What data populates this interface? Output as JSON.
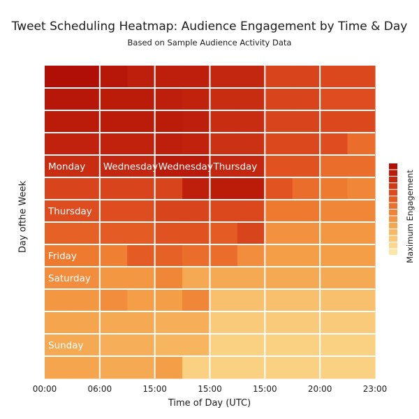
{
  "chart_data": {
    "type": "heatmap",
    "title": "Tweet Scheduling Heatmap: Audience Engagement by Time & Day",
    "subtitle": "Based on Sample Audience Activity Data",
    "xlabel": "Time of Day (UTC)",
    "ylabel": "Day ofthe Week",
    "x_tick_labels": [
      "00:00",
      "06:00",
      "15:00",
      "15:00",
      "15:00",
      "20:00",
      "23:00"
    ],
    "colorbar_label": "Maximum Engagement",
    "colorbar_range": [
      0,
      1
    ],
    "colorscale": [
      "#fbe6a6",
      "#f9c774",
      "#f5a24b",
      "#ee7a30",
      "#e05020",
      "#c62a10",
      "#b00f05"
    ],
    "grid": true,
    "legend": "right",
    "columns": 6,
    "rows": 14,
    "cell_text_labels": [
      {
        "row": 4,
        "col": 0,
        "text": "Monday"
      },
      {
        "row": 4,
        "col": 1,
        "text": "Wednesday"
      },
      {
        "row": 4,
        "col": 2,
        "text": "Wednesday"
      },
      {
        "row": 4,
        "col": 3,
        "text": "Thursday"
      },
      {
        "row": 6,
        "col": 0,
        "text": "Thursday"
      },
      {
        "row": 8,
        "col": 0,
        "text": "Friday"
      },
      {
        "row": 9,
        "col": 0,
        "text": "Saturday"
      },
      {
        "row": 12,
        "col": 0,
        "text": "Sunday"
      }
    ],
    "values": [
      [
        [
          1.0,
          1.0
        ],
        [
          0.95,
          0.9
        ],
        [
          0.9,
          0.9
        ],
        [
          0.85,
          0.85
        ],
        [
          0.72,
          0.72
        ],
        [
          0.7,
          0.7
        ]
      ],
      [
        [
          0.95,
          0.95
        ],
        [
          0.92,
          0.92
        ],
        [
          0.9,
          0.88
        ],
        [
          0.82,
          0.82
        ],
        [
          0.72,
          0.72
        ],
        [
          0.68,
          0.68
        ]
      ],
      [
        [
          0.92,
          0.92
        ],
        [
          0.92,
          0.92
        ],
        [
          0.92,
          0.9
        ],
        [
          0.82,
          0.82
        ],
        [
          0.72,
          0.72
        ],
        [
          0.7,
          0.7
        ]
      ],
      [
        [
          0.88,
          0.88
        ],
        [
          0.88,
          0.88
        ],
        [
          0.9,
          0.88
        ],
        [
          0.8,
          0.8
        ],
        [
          0.7,
          0.7
        ],
        [
          0.68,
          0.55
        ]
      ],
      [
        [
          0.82,
          0.82
        ],
        [
          0.85,
          0.85
        ],
        [
          0.93,
          0.93
        ],
        [
          0.85,
          0.85
        ],
        [
          0.66,
          0.66
        ],
        [
          0.55,
          0.55
        ]
      ],
      [
        [
          0.72,
          0.72
        ],
        [
          0.72,
          0.72
        ],
        [
          0.72,
          0.9
        ],
        [
          0.92,
          0.92
        ],
        [
          0.65,
          0.55
        ],
        [
          0.5,
          0.45
        ]
      ],
      [
        [
          0.68,
          0.68
        ],
        [
          0.68,
          0.68
        ],
        [
          0.72,
          0.72
        ],
        [
          0.7,
          0.7
        ],
        [
          0.5,
          0.5
        ],
        [
          0.45,
          0.45
        ]
      ],
      [
        [
          0.6,
          0.6
        ],
        [
          0.62,
          0.62
        ],
        [
          0.66,
          0.66
        ],
        [
          0.62,
          0.72
        ],
        [
          0.4,
          0.4
        ],
        [
          0.38,
          0.38
        ]
      ],
      [
        [
          0.5,
          0.5
        ],
        [
          0.48,
          0.62
        ],
        [
          0.6,
          0.55
        ],
        [
          0.55,
          0.42
        ],
        [
          0.35,
          0.35
        ],
        [
          0.35,
          0.35
        ]
      ],
      [
        [
          0.42,
          0.42
        ],
        [
          0.38,
          0.38
        ],
        [
          0.45,
          0.3
        ],
        [
          0.3,
          0.3
        ],
        [
          0.3,
          0.3
        ],
        [
          0.3,
          0.3
        ]
      ],
      [
        [
          0.38,
          0.38
        ],
        [
          0.42,
          0.35
        ],
        [
          0.35,
          0.45
        ],
        [
          0.2,
          0.2
        ],
        [
          0.2,
          0.2
        ],
        [
          0.2,
          0.2
        ]
      ],
      [
        [
          0.32,
          0.32
        ],
        [
          0.3,
          0.3
        ],
        [
          0.28,
          0.28
        ],
        [
          0.15,
          0.15
        ],
        [
          0.15,
          0.15
        ],
        [
          0.15,
          0.15
        ]
      ],
      [
        [
          0.3,
          0.3
        ],
        [
          0.28,
          0.28
        ],
        [
          0.25,
          0.25
        ],
        [
          0.12,
          0.12
        ],
        [
          0.12,
          0.12
        ],
        [
          0.12,
          0.12
        ]
      ],
      [
        [
          0.32,
          0.32
        ],
        [
          0.3,
          0.3
        ],
        [
          0.35,
          0.12
        ],
        [
          0.12,
          0.12
        ],
        [
          0.12,
          0.12
        ],
        [
          0.12,
          0.12
        ]
      ]
    ]
  }
}
